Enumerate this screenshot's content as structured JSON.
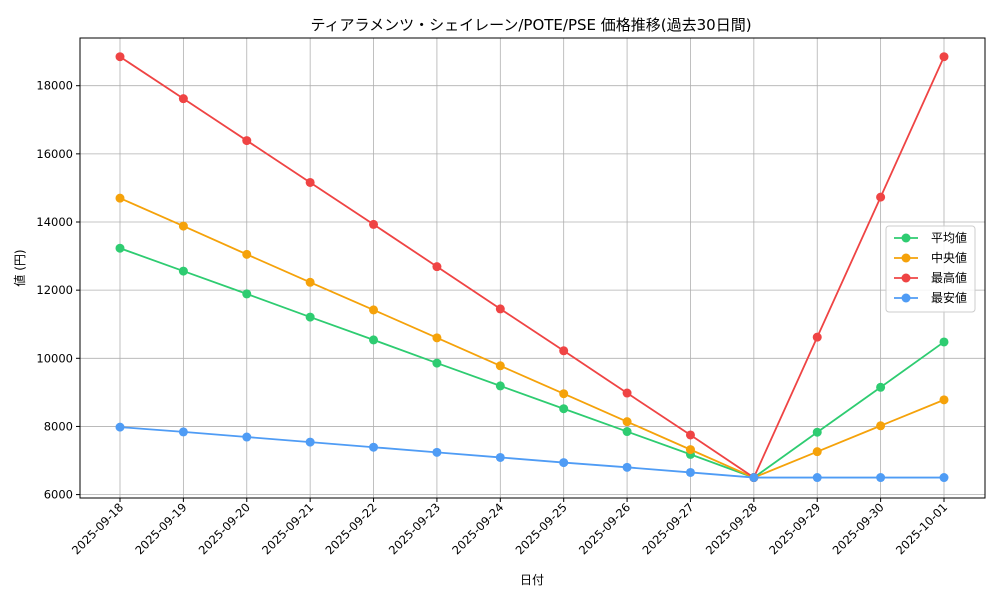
{
  "chart_data": {
    "type": "line",
    "title": "ティアラメンツ・シェイレーン/POTE/PSE 価格推移(過去30日間)",
    "xlabel": "日付",
    "ylabel": "値 (円)",
    "x": [
      "2025-09-18",
      "2025-09-19",
      "2025-09-20",
      "2025-09-21",
      "2025-09-22",
      "2025-09-23",
      "2025-09-24",
      "2025-09-25",
      "2025-09-26",
      "2025-09-27",
      "2025-09-28",
      "2025-09-29",
      "2025-09-30",
      "2025-10-01"
    ],
    "ylim": [
      5900,
      19400
    ],
    "yticks": [
      6000,
      8000,
      10000,
      12000,
      14000,
      16000,
      18000
    ],
    "grid": true,
    "legend_position": "center-right",
    "series": [
      {
        "name": "平均値",
        "color": "#2ecc71",
        "values": [
          13230,
          12560,
          11890,
          11210,
          10540,
          9860,
          9190,
          8520,
          7850,
          7180,
          6500,
          7830,
          9150,
          10480
        ]
      },
      {
        "name": "中央値",
        "color": "#f5a20a",
        "values": [
          14700,
          13880,
          13050,
          12230,
          11420,
          10600,
          9780,
          8960,
          8140,
          7320,
          6500,
          7260,
          8020,
          8780
        ]
      },
      {
        "name": "最高値",
        "color": "#ef4444",
        "values": [
          18850,
          17620,
          16390,
          15160,
          13930,
          12690,
          11450,
          10220,
          8980,
          7750,
          6500,
          10620,
          14730,
          18850
        ]
      },
      {
        "name": "最安値",
        "color": "#4f9cf5",
        "values": [
          7980,
          7840,
          7690,
          7540,
          7390,
          7240,
          7090,
          6940,
          6800,
          6650,
          6500,
          6500,
          6500,
          6500
        ]
      }
    ]
  }
}
